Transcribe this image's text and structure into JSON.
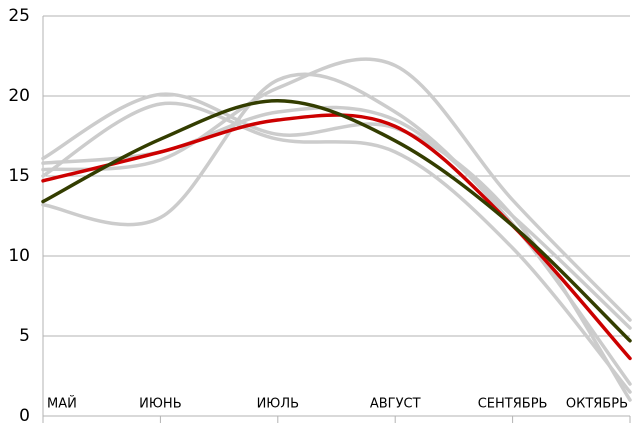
{
  "chart_data": {
    "type": "line",
    "categories": [
      "МАЙ",
      "ИЮНЬ",
      "ИЮЛЬ",
      "АВГУСТ",
      "СЕНТЯБРЬ",
      "ОКТЯБРЬ"
    ],
    "series": [
      {
        "color": "#cccccc",
        "values": [
          16.1,
          20.1,
          17.6,
          18.0,
          12.5,
          1.0
        ]
      },
      {
        "color": "#cccccc",
        "values": [
          15.4,
          16.0,
          20.5,
          21.9,
          13.5,
          6.0
        ]
      },
      {
        "color": "#cccccc",
        "values": [
          13.2,
          12.4,
          21.0,
          19.0,
          12.0,
          2.0
        ]
      },
      {
        "color": "#cccccc",
        "values": [
          15.0,
          19.5,
          17.3,
          16.5,
          10.5,
          1.5
        ]
      },
      {
        "color": "#cccccc",
        "values": [
          15.8,
          16.5,
          19.0,
          18.5,
          12.5,
          5.5
        ]
      },
      {
        "color": "#cc0000",
        "values": [
          14.7,
          16.5,
          18.5,
          18.1,
          11.9,
          3.6
        ]
      },
      {
        "color": "#333d00",
        "values": [
          13.4,
          17.3,
          19.7,
          17.2,
          11.9,
          4.7
        ]
      }
    ],
    "ylim": [
      0,
      25
    ],
    "yticks": [
      0,
      5,
      10,
      15,
      20,
      25
    ],
    "grid": true
  }
}
